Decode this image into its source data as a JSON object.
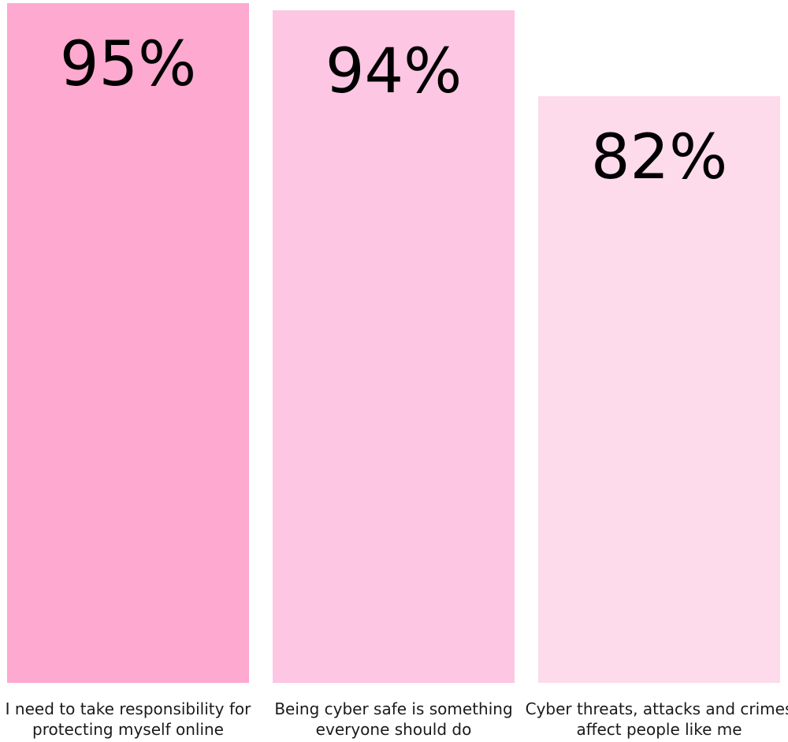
{
  "chart_data": {
    "type": "bar",
    "categories": [
      "I need to take responsibility for protecting myself online",
      "Being cyber safe is something everyone should do",
      "Cyber threats, attacks and crimes affect people like me"
    ],
    "category_lines": [
      [
        "I need to take responsibility for",
        "protecting myself online"
      ],
      [
        "Being cyber safe is something",
        "everyone should do"
      ],
      [
        "Cyber threats, attacks and crimes",
        "affect people like me"
      ]
    ],
    "values": [
      95,
      94,
      82
    ],
    "value_labels": [
      "95%",
      "94%",
      "82%"
    ],
    "colors": [
      "#fea9d0",
      "#fdc6e3",
      "#fddbeb"
    ],
    "unit": "%",
    "ylim": [
      0,
      95
    ],
    "title": "",
    "xlabel": "",
    "ylabel": "",
    "grid": false,
    "legend": "none"
  }
}
